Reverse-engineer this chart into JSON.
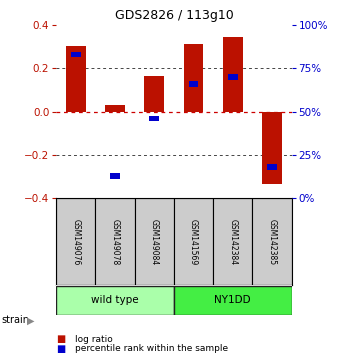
{
  "title": "GDS2826 / 113g10",
  "samples": [
    "GSM149076",
    "GSM149078",
    "GSM149084",
    "GSM141569",
    "GSM142384",
    "GSM142385"
  ],
  "log_ratio": [
    0.3,
    0.03,
    0.163,
    0.313,
    0.343,
    -0.335
  ],
  "percentile_rank": [
    83,
    13,
    46,
    66,
    70,
    18
  ],
  "groups": [
    {
      "label": "wild type",
      "start": 0,
      "end": 3,
      "color": "#aaffaa"
    },
    {
      "label": "NY1DD",
      "start": 3,
      "end": 6,
      "color": "#44ee44"
    }
  ],
  "ylim": [
    -0.4,
    0.4
  ],
  "yticks_left": [
    -0.4,
    -0.2,
    0.0,
    0.2,
    0.4
  ],
  "red_color": "#BB1100",
  "blue_color": "#0000CC",
  "bar_width": 0.5,
  "hline_color": "#CC0000",
  "dotline_color": "#444444",
  "background_color": "#ffffff",
  "strain_label": "strain",
  "legend_red": "log ratio",
  "legend_blue": "percentile rank within the sample"
}
